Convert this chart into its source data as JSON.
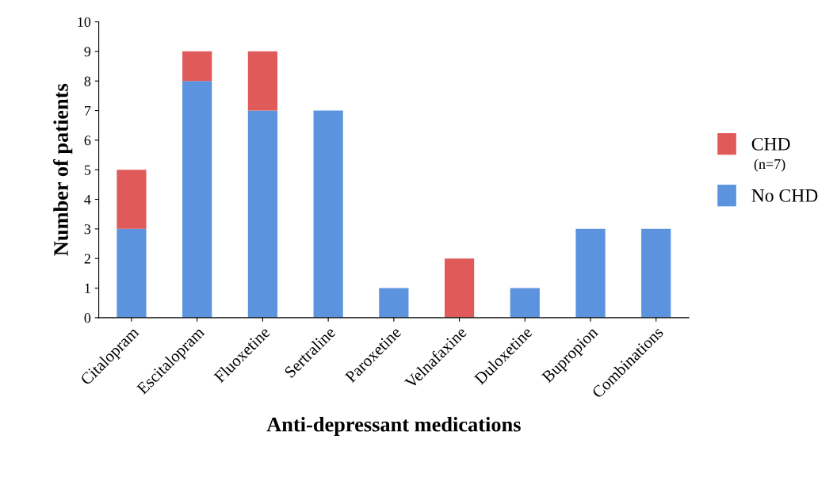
{
  "chart_data": {
    "type": "bar",
    "stacked": true,
    "xlabel": "Anti-depressant medications",
    "ylabel": "Number of patients",
    "categories": [
      "Citalopram",
      "Escitalopram",
      "Fluoxetine",
      "Sertraline",
      "Paroxetine",
      "Velnafaxine",
      "Duloxetine",
      "Bupropion",
      "Combinations"
    ],
    "series": [
      {
        "name": "No CHD",
        "color": "#5b93de",
        "values": [
          3,
          8,
          7,
          7,
          1,
          0,
          1,
          3,
          3
        ]
      },
      {
        "name": "CHD",
        "color": "#e05a5a",
        "values": [
          2,
          1,
          2,
          0,
          0,
          2,
          0,
          0,
          0
        ]
      }
    ],
    "ylim": [
      0,
      10
    ],
    "yticks": [
      0,
      1,
      2,
      3,
      4,
      5,
      6,
      7,
      8,
      9,
      10
    ],
    "grid": false,
    "legend": "right",
    "annotations": [
      "(n=7)"
    ]
  }
}
